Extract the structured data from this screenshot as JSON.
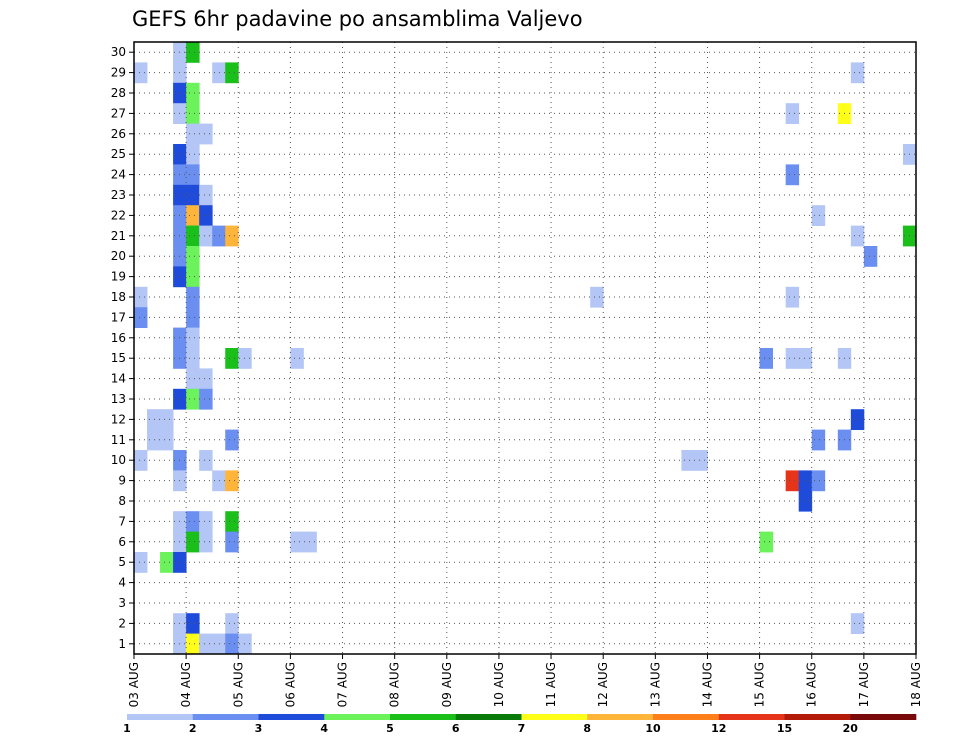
{
  "chart_data": {
    "type": "heatmap",
    "title": "GEFS 6hr padavine po ansamblima Valjevo",
    "xlabel": "",
    "ylabel": "",
    "x_ticks": [
      "03 AUG",
      "04 AUG",
      "05 AUG",
      "06 AUG",
      "07 AUG",
      "08 AUG",
      "09 AUG",
      "10 AUG",
      "11 AUG",
      "12 AUG",
      "13 AUG",
      "14 AUG",
      "15 AUG",
      "16 AUG",
      "17 AUG",
      "18 AUG"
    ],
    "xlim": [
      0,
      15
    ],
    "y_ticks": [
      1,
      2,
      3,
      4,
      5,
      6,
      7,
      8,
      9,
      10,
      11,
      12,
      13,
      14,
      15,
      16,
      17,
      18,
      19,
      20,
      21,
      22,
      23,
      24,
      25,
      26,
      27,
      28,
      29,
      30
    ],
    "ylim": [
      0.5,
      30.5
    ],
    "grid": true,
    "legend_placement": "bottom",
    "legend": {
      "labels": [
        "1",
        "2",
        "3",
        "4",
        "5",
        "6",
        "7",
        "8",
        "10",
        "12",
        "15",
        "20"
      ],
      "colors": [
        "#b3c6f5",
        "#6b8ff0",
        "#1f4bdb",
        "#6cf25a",
        "#1abf1a",
        "#0a7a0a",
        "#ffff1a",
        "#ffb43a",
        "#ff7f1a",
        "#e5341a",
        "#b41a0a",
        "#7a0a0a"
      ]
    },
    "units_note": "x in days from 03 AUG, cell width 0.25 day (6 hr); y = ensemble member; c = colour class index",
    "cells": [
      {
        "x": 0.0,
        "y": 29,
        "c": 0
      },
      {
        "x": 0.0,
        "y": 18,
        "c": 0
      },
      {
        "x": 0.0,
        "y": 17,
        "c": 1
      },
      {
        "x": 0.0,
        "y": 10,
        "c": 0
      },
      {
        "x": 0.0,
        "y": 5,
        "c": 0
      },
      {
        "x": 0.25,
        "y": 12,
        "c": 0
      },
      {
        "x": 0.25,
        "y": 11,
        "c": 0
      },
      {
        "x": 0.5,
        "y": 12,
        "c": 0
      },
      {
        "x": 0.5,
        "y": 11,
        "c": 0
      },
      {
        "x": 0.5,
        "y": 5,
        "c": 3
      },
      {
        "x": 0.75,
        "y": 30,
        "c": 0
      },
      {
        "x": 0.75,
        "y": 29,
        "c": 0
      },
      {
        "x": 0.75,
        "y": 28,
        "c": 2
      },
      {
        "x": 0.75,
        "y": 27,
        "c": 0
      },
      {
        "x": 0.75,
        "y": 25,
        "c": 2
      },
      {
        "x": 0.75,
        "y": 24,
        "c": 1
      },
      {
        "x": 0.75,
        "y": 23,
        "c": 2
      },
      {
        "x": 0.75,
        "y": 22,
        "c": 1
      },
      {
        "x": 0.75,
        "y": 21,
        "c": 1
      },
      {
        "x": 0.75,
        "y": 20,
        "c": 1
      },
      {
        "x": 0.75,
        "y": 19,
        "c": 2
      },
      {
        "x": 0.75,
        "y": 16,
        "c": 1
      },
      {
        "x": 0.75,
        "y": 15,
        "c": 1
      },
      {
        "x": 0.75,
        "y": 13,
        "c": 2
      },
      {
        "x": 0.75,
        "y": 10,
        "c": 1
      },
      {
        "x": 0.75,
        "y": 9,
        "c": 0
      },
      {
        "x": 0.75,
        "y": 7,
        "c": 0
      },
      {
        "x": 0.75,
        "y": 6,
        "c": 0
      },
      {
        "x": 0.75,
        "y": 5,
        "c": 2
      },
      {
        "x": 0.75,
        "y": 2,
        "c": 0
      },
      {
        "x": 0.75,
        "y": 1,
        "c": 0
      },
      {
        "x": 1.0,
        "y": 30,
        "c": 4
      },
      {
        "x": 1.0,
        "y": 28,
        "c": 3
      },
      {
        "x": 1.0,
        "y": 27,
        "c": 3
      },
      {
        "x": 1.0,
        "y": 26,
        "c": 0
      },
      {
        "x": 1.0,
        "y": 25,
        "c": 0
      },
      {
        "x": 1.0,
        "y": 24,
        "c": 1
      },
      {
        "x": 1.0,
        "y": 23,
        "c": 2
      },
      {
        "x": 1.0,
        "y": 22,
        "c": 7
      },
      {
        "x": 1.0,
        "y": 21,
        "c": 4
      },
      {
        "x": 1.0,
        "y": 20,
        "c": 3
      },
      {
        "x": 1.0,
        "y": 19,
        "c": 3
      },
      {
        "x": 1.0,
        "y": 18,
        "c": 1
      },
      {
        "x": 1.0,
        "y": 17,
        "c": 1
      },
      {
        "x": 1.0,
        "y": 16,
        "c": 0
      },
      {
        "x": 1.0,
        "y": 15,
        "c": 0
      },
      {
        "x": 1.0,
        "y": 14,
        "c": 0
      },
      {
        "x": 1.0,
        "y": 13,
        "c": 3
      },
      {
        "x": 1.0,
        "y": 7,
        "c": 1
      },
      {
        "x": 1.0,
        "y": 6,
        "c": 4
      },
      {
        "x": 1.0,
        "y": 2,
        "c": 2
      },
      {
        "x": 1.0,
        "y": 1,
        "c": 6
      },
      {
        "x": 1.25,
        "y": 26,
        "c": 0
      },
      {
        "x": 1.25,
        "y": 23,
        "c": 0
      },
      {
        "x": 1.25,
        "y": 22,
        "c": 2
      },
      {
        "x": 1.25,
        "y": 21,
        "c": 0
      },
      {
        "x": 1.25,
        "y": 14,
        "c": 0
      },
      {
        "x": 1.25,
        "y": 13,
        "c": 1
      },
      {
        "x": 1.25,
        "y": 10,
        "c": 0
      },
      {
        "x": 1.25,
        "y": 7,
        "c": 0
      },
      {
        "x": 1.25,
        "y": 6,
        "c": 0
      },
      {
        "x": 1.25,
        "y": 1,
        "c": 0
      },
      {
        "x": 1.5,
        "y": 29,
        "c": 0
      },
      {
        "x": 1.5,
        "y": 21,
        "c": 1
      },
      {
        "x": 1.5,
        "y": 9,
        "c": 0
      },
      {
        "x": 1.5,
        "y": 1,
        "c": 0
      },
      {
        "x": 1.75,
        "y": 29,
        "c": 4
      },
      {
        "x": 1.75,
        "y": 21,
        "c": 7
      },
      {
        "x": 1.75,
        "y": 15,
        "c": 4
      },
      {
        "x": 1.75,
        "y": 11,
        "c": 1
      },
      {
        "x": 1.75,
        "y": 9,
        "c": 7
      },
      {
        "x": 1.75,
        "y": 7,
        "c": 4
      },
      {
        "x": 1.75,
        "y": 6,
        "c": 1
      },
      {
        "x": 1.75,
        "y": 2,
        "c": 0
      },
      {
        "x": 1.75,
        "y": 1,
        "c": 1
      },
      {
        "x": 2.0,
        "y": 15,
        "c": 0
      },
      {
        "x": 2.0,
        "y": 1,
        "c": 0
      },
      {
        "x": 3.0,
        "y": 15,
        "c": 0
      },
      {
        "x": 3.0,
        "y": 6,
        "c": 0
      },
      {
        "x": 3.25,
        "y": 6,
        "c": 0
      },
      {
        "x": 8.75,
        "y": 18,
        "c": 0
      },
      {
        "x": 10.5,
        "y": 10,
        "c": 0
      },
      {
        "x": 10.75,
        "y": 10,
        "c": 0
      },
      {
        "x": 12.0,
        "y": 15,
        "c": 1
      },
      {
        "x": 12.0,
        "y": 6,
        "c": 3
      },
      {
        "x": 12.5,
        "y": 27,
        "c": 0
      },
      {
        "x": 12.5,
        "y": 24,
        "c": 1
      },
      {
        "x": 12.5,
        "y": 18,
        "c": 0
      },
      {
        "x": 12.5,
        "y": 15,
        "c": 0
      },
      {
        "x": 12.5,
        "y": 9,
        "c": 9
      },
      {
        "x": 12.75,
        "y": 15,
        "c": 0
      },
      {
        "x": 12.75,
        "y": 9,
        "c": 2
      },
      {
        "x": 12.75,
        "y": 8,
        "c": 2
      },
      {
        "x": 13.0,
        "y": 22,
        "c": 0
      },
      {
        "x": 13.0,
        "y": 11,
        "c": 1
      },
      {
        "x": 13.0,
        "y": 9,
        "c": 1
      },
      {
        "x": 13.5,
        "y": 27,
        "c": 6
      },
      {
        "x": 13.5,
        "y": 15,
        "c": 0
      },
      {
        "x": 13.5,
        "y": 11,
        "c": 1
      },
      {
        "x": 13.75,
        "y": 29,
        "c": 0
      },
      {
        "x": 13.75,
        "y": 21,
        "c": 0
      },
      {
        "x": 13.75,
        "y": 12,
        "c": 2
      },
      {
        "x": 13.75,
        "y": 2,
        "c": 0
      },
      {
        "x": 14.0,
        "y": 20,
        "c": 1
      },
      {
        "x": 14.75,
        "y": 25,
        "c": 0
      },
      {
        "x": 14.75,
        "y": 21,
        "c": 4
      }
    ]
  }
}
